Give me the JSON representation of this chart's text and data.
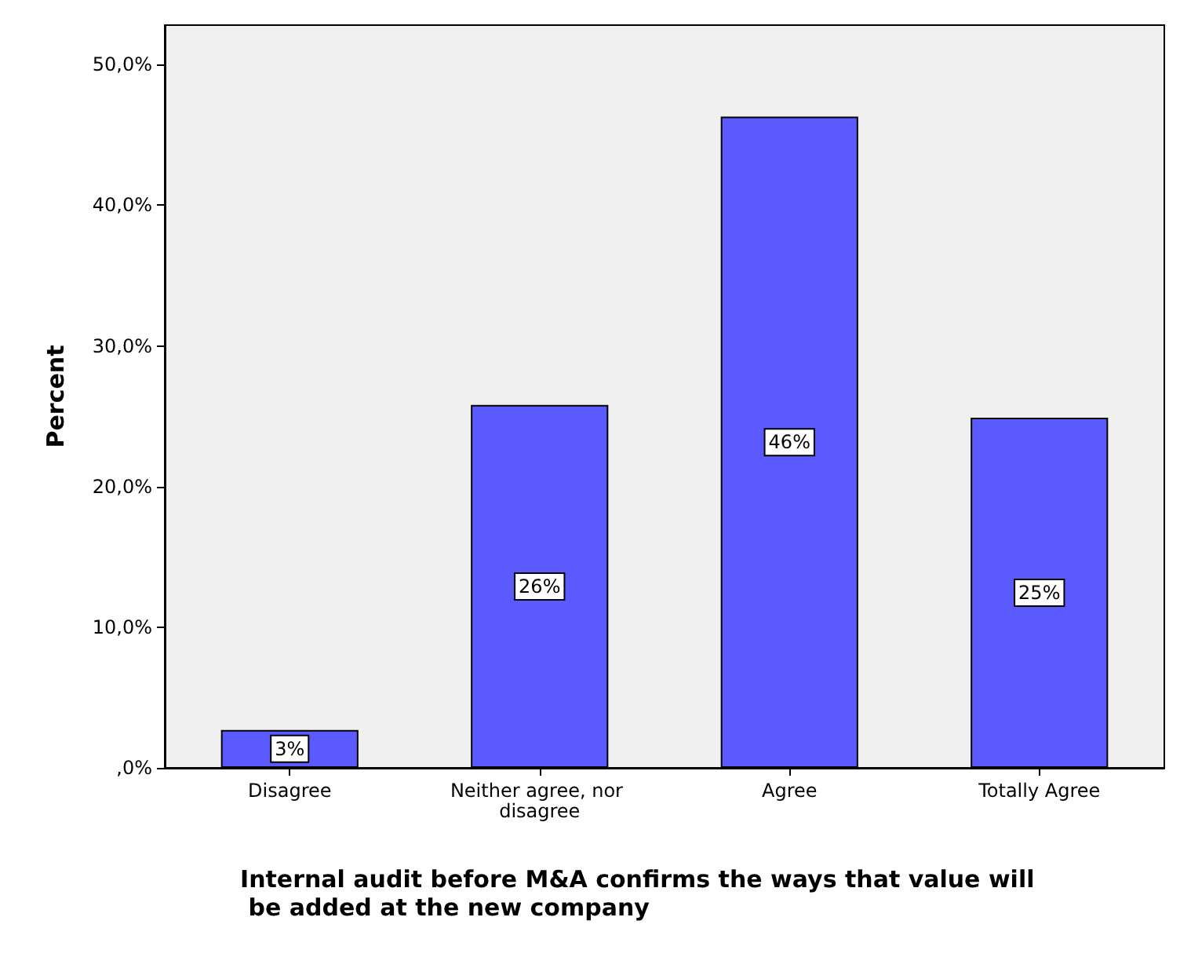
{
  "chart_data": {
    "type": "bar",
    "xlabel": "Internal audit before M&A confirms the ways that value will be added at the new company",
    "ylabel": "Percent",
    "categories": [
      "Disagree",
      "Neither agree, nor disagree",
      "Agree",
      "Totally Agree"
    ],
    "values": [
      2.7,
      25.8,
      46.3,
      24.9
    ],
    "value_labels": [
      "3%",
      "26%",
      "46%",
      "25%"
    ],
    "color": "#5a5aff",
    "ylim": [
      0,
      52.8
    ],
    "yticks": [
      {
        "value": 0,
        "label": ",0%"
      },
      {
        "value": 10,
        "label": "10,0%"
      },
      {
        "value": 20,
        "label": "20,0%"
      },
      {
        "value": 30,
        "label": "30,0%"
      },
      {
        "value": 40,
        "label": "40,0%"
      },
      {
        "value": 50,
        "label": "50,0%"
      }
    ],
    "grid": false
  }
}
